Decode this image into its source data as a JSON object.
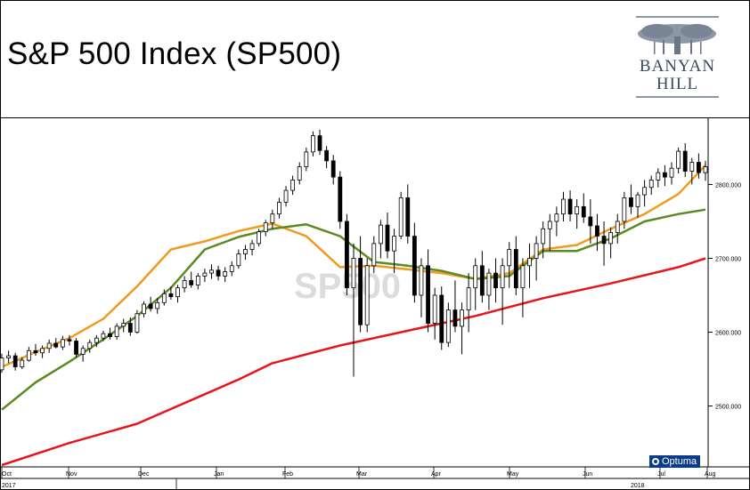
{
  "title": "S&P 500 Index  (SP500)",
  "logo": {
    "line1": "BANYAN",
    "line2": "HILL",
    "icon": "banyan-tree-icon"
  },
  "watermark": "SP500",
  "provider": "Optuma",
  "colors": {
    "candle_up": "#ffffff",
    "candle_down": "#000000",
    "ma_fast": "#f39a1e",
    "ma_mid": "#5b8a23",
    "ma_slow": "#e8141b",
    "logo_text": "#3a4a5e",
    "optuma_bg": "#0b3c8a"
  },
  "chart_data": {
    "type": "line",
    "title": "S&P 500 Index  (SP500)",
    "ylim": [
      2420,
      2880
    ],
    "y_ticks": [
      "2800.000",
      "2700.000",
      "2600.000",
      "2500.000"
    ],
    "y_tick_values": [
      2800,
      2700,
      2600,
      2500
    ],
    "x_month_labels": [
      "Oct",
      "Nov",
      "Dec",
      "Jan",
      "Feb",
      "Mar",
      "Apr",
      "May",
      "Jun",
      "Jul",
      "Aug"
    ],
    "x_year_labels": [
      "2017",
      "2018"
    ],
    "grid": false,
    "series": [
      {
        "kind": "moving-average-fast",
        "x": [
          0,
          10,
          20,
          30,
          40,
          50,
          60,
          70,
          80,
          90,
          100,
          110,
          120,
          130,
          140,
          150,
          160,
          170,
          180,
          190,
          200,
          208
        ],
        "values": [
          2553,
          2573,
          2592,
          2618,
          2662,
          2712,
          2723,
          2737,
          2747,
          2730,
          2688,
          2690,
          2685,
          2680,
          2672,
          2680,
          2712,
          2718,
          2740,
          2760,
          2787,
          2826
        ]
      },
      {
        "kind": "moving-average-mid",
        "x": [
          0,
          10,
          20,
          30,
          40,
          50,
          60,
          70,
          80,
          90,
          100,
          110,
          120,
          130,
          140,
          150,
          160,
          170,
          180,
          190,
          200,
          208
        ],
        "values": [
          2495,
          2532,
          2560,
          2590,
          2622,
          2660,
          2712,
          2729,
          2740,
          2746,
          2730,
          2695,
          2690,
          2683,
          2672,
          2676,
          2710,
          2710,
          2727,
          2750,
          2760,
          2766
        ]
      },
      {
        "kind": "moving-average-slow",
        "x": [
          0,
          20,
          40,
          60,
          70,
          80,
          100,
          120,
          130,
          140,
          160,
          180,
          200,
          208
        ],
        "values": [
          2420,
          2450,
          2476,
          2516,
          2536,
          2558,
          2582,
          2602,
          2612,
          2622,
          2646,
          2666,
          2688,
          2700
        ]
      }
    ],
    "candles": [
      [
        2549,
        2571,
        2545,
        2565
      ],
      [
        2565,
        2575,
        2558,
        2568
      ],
      [
        2568,
        2572,
        2548,
        2553
      ],
      [
        2553,
        2566,
        2550,
        2562
      ],
      [
        2562,
        2580,
        2560,
        2575
      ],
      [
        2575,
        2584,
        2568,
        2572
      ],
      [
        2572,
        2582,
        2565,
        2578
      ],
      [
        2578,
        2590,
        2572,
        2585
      ],
      [
        2585,
        2592,
        2578,
        2580
      ],
      [
        2580,
        2595,
        2576,
        2590
      ],
      [
        2590,
        2596,
        2582,
        2588
      ],
      [
        2588,
        2592,
        2566,
        2570
      ],
      [
        2570,
        2582,
        2560,
        2578
      ],
      [
        2578,
        2590,
        2572,
        2586
      ],
      [
        2586,
        2596,
        2580,
        2592
      ],
      [
        2592,
        2602,
        2588,
        2598
      ],
      [
        2598,
        2606,
        2590,
        2594
      ],
      [
        2594,
        2612,
        2590,
        2608
      ],
      [
        2608,
        2618,
        2600,
        2612
      ],
      [
        2612,
        2620,
        2595,
        2600
      ],
      [
        2600,
        2630,
        2598,
        2625
      ],
      [
        2625,
        2642,
        2620,
        2638
      ],
      [
        2638,
        2648,
        2628,
        2632
      ],
      [
        2632,
        2646,
        2625,
        2640
      ],
      [
        2640,
        2658,
        2636,
        2652
      ],
      [
        2652,
        2662,
        2644,
        2648
      ],
      [
        2648,
        2664,
        2640,
        2660
      ],
      [
        2660,
        2676,
        2654,
        2670
      ],
      [
        2670,
        2682,
        2660,
        2664
      ],
      [
        2664,
        2680,
        2658,
        2676
      ],
      [
        2676,
        2686,
        2668,
        2680
      ],
      [
        2680,
        2692,
        2672,
        2684
      ],
      [
        2684,
        2690,
        2670,
        2676
      ],
      [
        2676,
        2688,
        2668,
        2682
      ],
      [
        2682,
        2696,
        2676,
        2690
      ],
      [
        2690,
        2712,
        2686,
        2706
      ],
      [
        2706,
        2718,
        2698,
        2712
      ],
      [
        2712,
        2725,
        2704,
        2720
      ],
      [
        2720,
        2740,
        2716,
        2736
      ],
      [
        2736,
        2752,
        2730,
        2748
      ],
      [
        2748,
        2766,
        2740,
        2760
      ],
      [
        2760,
        2782,
        2754,
        2776
      ],
      [
        2776,
        2798,
        2770,
        2792
      ],
      [
        2792,
        2812,
        2786,
        2806
      ],
      [
        2806,
        2830,
        2800,
        2824
      ],
      [
        2824,
        2850,
        2818,
        2844
      ],
      [
        2844,
        2872,
        2838,
        2866
      ],
      [
        2866,
        2874,
        2840,
        2846
      ],
      [
        2846,
        2852,
        2822,
        2832
      ],
      [
        2832,
        2840,
        2800,
        2810
      ],
      [
        2810,
        2818,
        2740,
        2750
      ],
      [
        2750,
        2760,
        2650,
        2660
      ],
      [
        2660,
        2720,
        2540,
        2700
      ],
      [
        2700,
        2730,
        2600,
        2610
      ],
      [
        2610,
        2700,
        2600,
        2690
      ],
      [
        2690,
        2730,
        2680,
        2720
      ],
      [
        2720,
        2752,
        2700,
        2745
      ],
      [
        2745,
        2762,
        2700,
        2710
      ],
      [
        2710,
        2740,
        2680,
        2730
      ],
      [
        2730,
        2790,
        2726,
        2782
      ],
      [
        2782,
        2800,
        2720,
        2730
      ],
      [
        2730,
        2748,
        2640,
        2650
      ],
      [
        2650,
        2700,
        2620,
        2690
      ],
      [
        2690,
        2712,
        2600,
        2612
      ],
      [
        2612,
        2660,
        2590,
        2650
      ],
      [
        2650,
        2662,
        2576,
        2586
      ],
      [
        2586,
        2640,
        2580,
        2630
      ],
      [
        2630,
        2670,
        2600,
        2608
      ],
      [
        2608,
        2640,
        2570,
        2630
      ],
      [
        2630,
        2680,
        2600,
        2660
      ],
      [
        2660,
        2700,
        2630,
        2690
      ],
      [
        2690,
        2710,
        2640,
        2650
      ],
      [
        2650,
        2686,
        2630,
        2680
      ],
      [
        2680,
        2700,
        2640,
        2660
      ],
      [
        2660,
        2700,
        2610,
        2690
      ],
      [
        2690,
        2722,
        2660,
        2712
      ],
      [
        2712,
        2730,
        2650,
        2660
      ],
      [
        2660,
        2700,
        2620,
        2690
      ],
      [
        2690,
        2720,
        2660,
        2700
      ],
      [
        2700,
        2730,
        2670,
        2720
      ],
      [
        2720,
        2750,
        2700,
        2740
      ],
      [
        2740,
        2760,
        2710,
        2750
      ],
      [
        2750,
        2770,
        2730,
        2760
      ],
      [
        2760,
        2790,
        2750,
        2780
      ],
      [
        2780,
        2792,
        2750,
        2760
      ],
      [
        2760,
        2780,
        2740,
        2770
      ],
      [
        2770,
        2788,
        2748,
        2756
      ],
      [
        2756,
        2780,
        2720,
        2744
      ],
      [
        2744,
        2760,
        2710,
        2730
      ],
      [
        2730,
        2750,
        2690,
        2720
      ],
      [
        2720,
        2742,
        2700,
        2735
      ],
      [
        2735,
        2760,
        2720,
        2750
      ],
      [
        2750,
        2790,
        2740,
        2782
      ],
      [
        2782,
        2800,
        2760,
        2770
      ],
      [
        2770,
        2790,
        2755,
        2786
      ],
      [
        2786,
        2806,
        2770,
        2796
      ],
      [
        2796,
        2812,
        2786,
        2806
      ],
      [
        2806,
        2822,
        2796,
        2816
      ],
      [
        2816,
        2826,
        2798,
        2810
      ],
      [
        2810,
        2830,
        2800,
        2822
      ],
      [
        2822,
        2850,
        2815,
        2845
      ],
      [
        2845,
        2856,
        2810,
        2818
      ],
      [
        2818,
        2836,
        2800,
        2830
      ],
      [
        2830,
        2842,
        2808,
        2816
      ],
      [
        2816,
        2832,
        2805,
        2824
      ]
    ]
  }
}
